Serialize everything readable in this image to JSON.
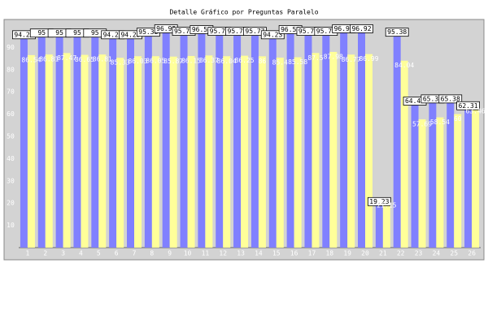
{
  "chart_data": {
    "type": "bar",
    "title": "Detalle Gráfico por Preguntas Paralelo",
    "categories": [
      "1",
      "2",
      "3",
      "4",
      "5",
      "6",
      "7",
      "8",
      "9",
      "10",
      "11",
      "12",
      "13",
      "14",
      "15",
      "16",
      "17",
      "18",
      "19",
      "20",
      "21",
      "22",
      "23",
      "24",
      "25",
      "26"
    ],
    "series": [
      {
        "color": "#8080ff",
        "values": [
          94.23,
          95.0,
          95.0,
          95.0,
          95.0,
          94.23,
          94.23,
          95.38,
          96.92,
          95.77,
          96.54,
          95.77,
          95.77,
          95.77,
          94.23,
          96.54,
          95.77,
          95.77,
          96.92,
          96.92,
          19.23,
          95.38,
          64.42,
          65.38,
          65.38,
          62.31
        ]
      },
      {
        "color": "#ffff99",
        "values": [
          86.54,
          86.81,
          87.47,
          86.65,
          86.81,
          85.33,
          86.03,
          86.05,
          85.87,
          86.15,
          86.37,
          86.04,
          86.25,
          86.0,
          85.4,
          85.58,
          87.5,
          87.98,
          86.77,
          86.99,
          21.15,
          84.04,
          57.69,
          58.54,
          60.0,
          63.46
        ]
      }
    ],
    "ylim": [
      0,
      100
    ],
    "yticks": [
      10,
      20,
      30,
      40,
      50,
      60,
      70,
      80,
      90
    ],
    "grid": false
  }
}
